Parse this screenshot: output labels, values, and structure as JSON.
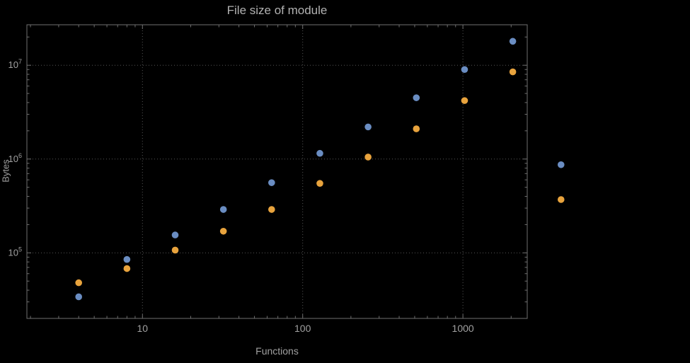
{
  "chart_data": {
    "type": "scatter",
    "title": "File size of module",
    "xlabel": "Functions",
    "ylabel": "Bytes",
    "x_scale": "log",
    "y_scale": "log",
    "x_range": [
      1.9,
      2520
    ],
    "y_range": [
      20000,
      27000000
    ],
    "x_ticks": [
      10,
      100,
      1000
    ],
    "x_tick_labels": [
      "10",
      "100",
      "1000"
    ],
    "y_ticks": [
      100000,
      1000000,
      10000000
    ],
    "y_tick_labels": [
      "10^5",
      "10^6",
      "10^7"
    ],
    "grid": "dotted-major",
    "legend": "none",
    "x": [
      4,
      8,
      16,
      32,
      64,
      128,
      256,
      512,
      1024,
      2048,
      4096
    ],
    "series": [
      {
        "name": "series-blue",
        "color": "#6a8dc2",
        "values": [
          34000,
          85000,
          155000,
          290000,
          560000,
          1150000,
          2200000,
          4500000,
          9000000,
          18000000,
          870000
        ]
      },
      {
        "name": "series-orange",
        "color": "#e8a33d",
        "values": [
          48000,
          68000,
          107000,
          170000,
          290000,
          550000,
          1050000,
          2100000,
          4200000,
          8500000,
          370000
        ]
      }
    ]
  },
  "colors": {
    "background": "#000000",
    "frame": "#6f6f6f",
    "grid": "#565656",
    "tick_text": "#a0a0a0",
    "title_text": "#b2b2b2"
  }
}
